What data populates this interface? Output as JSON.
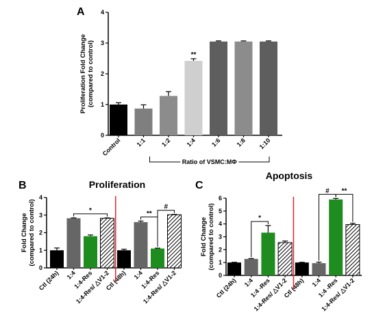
{
  "chart_data": [
    {
      "type": "bar",
      "panel": "A",
      "ylabel": "Proliferation Fold Change\n(compared to control)",
      "ylim": [
        0,
        4
      ],
      "yticks": [
        0,
        1,
        2,
        3,
        4
      ],
      "categories": [
        "Control",
        "1:1",
        "1:2",
        "1:4",
        "1:6",
        "1:8",
        "1:10"
      ],
      "values": [
        1.0,
        0.87,
        1.28,
        2.42,
        3.05,
        3.05,
        3.05
      ],
      "errors": [
        0.06,
        0.12,
        0.14,
        0.07,
        0.02,
        0.02,
        0.02
      ],
      "colors": [
        "#000000",
        "#7f7f7f",
        "#8c8c8c",
        "#cfcfcf",
        "#5e5e5e",
        "#8c8c8c",
        "#5e5e5e"
      ],
      "bracket_label": "Ratio of VSMC:MΦ",
      "annotations": [
        {
          "category": "1:4",
          "text": "**"
        }
      ]
    },
    {
      "type": "bar",
      "panel": "B",
      "title": "Proliferation",
      "ylabel": "Fold Change\n(compared to control)",
      "ylim": [
        0,
        4
      ],
      "yticks": [
        0,
        1,
        2,
        3,
        4
      ],
      "categories": [
        "Ctl (24h)",
        "1:4",
        "1:4-Res",
        "1:4-Res/ △V1-2",
        "Ctl (48h)",
        "1:4",
        "1:4-Res",
        "1:4-Res/ △V1-2"
      ],
      "values": [
        1.0,
        2.82,
        1.8,
        2.82,
        1.0,
        2.6,
        1.1,
        3.02
      ],
      "errors": [
        0.13,
        0.02,
        0.07,
        0.02,
        0.06,
        0.06,
        0.02,
        0.02
      ],
      "fills": [
        "black",
        "gray",
        "green",
        "hatch",
        "black",
        "gray",
        "green",
        "hatch"
      ],
      "brackets": [
        {
          "from": "1:4",
          "to": "1:4-Res/ △V1-2",
          "group": 0,
          "text": "*"
        },
        {
          "from": "1:4",
          "to": "1:4-Res",
          "group": 1,
          "text": "**"
        },
        {
          "from": "1:4-Res",
          "to": "1:4-Res/ △V1-2",
          "group": 1,
          "text": "#"
        }
      ]
    },
    {
      "type": "bar",
      "panel": "C",
      "title": "Apoptosis",
      "ylabel": "Fold Change\n(compared to control)",
      "ylim": [
        0,
        6
      ],
      "yticks": [
        0,
        1,
        2,
        3,
        4,
        5,
        6
      ],
      "categories": [
        "Ctl (24h)",
        "1:4",
        "1:4 -Res",
        "1:4-Res/ △V1-2",
        "Ctl (48h)",
        "1:4",
        "1:4 -Res",
        "1:4-Res/ △V1-2"
      ],
      "values": [
        1.0,
        1.28,
        3.32,
        2.55,
        1.0,
        0.95,
        5.9,
        3.95
      ],
      "errors": [
        0.02,
        0.03,
        0.55,
        0.12,
        0.02,
        0.08,
        0.08,
        0.1
      ],
      "fills": [
        "black",
        "gray",
        "green",
        "hatch",
        "black",
        "gray",
        "green",
        "hatch"
      ],
      "brackets": [
        {
          "from": "1:4",
          "to": "1:4 -Res",
          "group": 0,
          "text": "*"
        },
        {
          "from": "1:4",
          "to": "1:4 -Res",
          "group": 1,
          "text": "#"
        },
        {
          "from": "1:4 -Res",
          "to": "1:4-Res/ △V1-2",
          "group": 1,
          "text": "**"
        }
      ]
    }
  ],
  "palette": {
    "black": "#000000",
    "gray": "#666666",
    "green": "#1e8c1e",
    "hatch_line": "#000000",
    "divider": "#e8202a"
  }
}
